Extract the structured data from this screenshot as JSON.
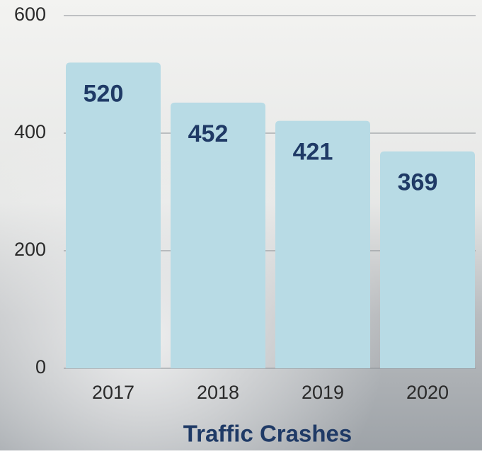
{
  "chart_data": {
    "type": "bar",
    "x_label": "Traffic Crashes",
    "categories": [
      "2017",
      "2018",
      "2019",
      "2020"
    ],
    "values": [
      520,
      452,
      421,
      369
    ],
    "color": "#b8dbe5",
    "ylim": [
      0,
      600
    ],
    "yticks": [
      0,
      200,
      400,
      600
    ],
    "grid": true
  }
}
